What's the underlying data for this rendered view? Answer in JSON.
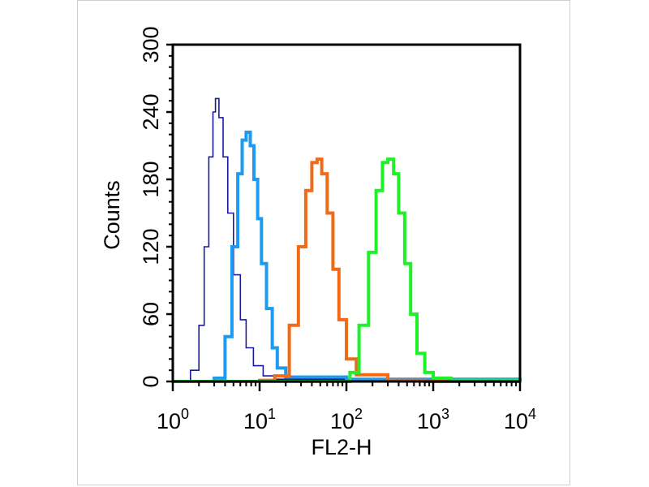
{
  "chart_data": {
    "type": "line",
    "title": "",
    "xlabel": "FL2-H",
    "ylabel": "Counts",
    "x_scale": "log",
    "xlim": [
      1,
      10000
    ],
    "ylim": [
      0,
      300
    ],
    "grid": false,
    "legend": "none",
    "x_ticks": [
      {
        "base": "10",
        "exp": "0",
        "value": 1
      },
      {
        "base": "10",
        "exp": "1",
        "value": 10
      },
      {
        "base": "10",
        "exp": "2",
        "value": 100
      },
      {
        "base": "10",
        "exp": "3",
        "value": 1000
      },
      {
        "base": "10",
        "exp": "4",
        "value": 10000
      }
    ],
    "y_ticks": [
      "0",
      "60",
      "120",
      "180",
      "240",
      "300"
    ],
    "y_tick_values": [
      0,
      60,
      120,
      180,
      240,
      300
    ],
    "series": [
      {
        "color": "#1a1aa0",
        "stroke": "thin",
        "x": [
          1,
          1.6,
          2,
          2.3,
          2.6,
          2.9,
          3.1,
          3.4,
          3.8,
          4.3,
          5,
          6,
          7,
          8.5,
          11,
          15,
          10000
        ],
        "y": [
          0,
          10,
          50,
          120,
          200,
          240,
          252,
          235,
          200,
          150,
          95,
          55,
          30,
          14,
          5,
          2,
          0
        ]
      },
      {
        "color": "#1e9af0",
        "stroke": "thick",
        "x": [
          1,
          3,
          4,
          4.8,
          5.6,
          6.3,
          7,
          7.8,
          8.6,
          9.5,
          10.5,
          12,
          14,
          16,
          20,
          100,
          10000
        ],
        "y": [
          0,
          3,
          40,
          120,
          185,
          215,
          222,
          210,
          180,
          145,
          105,
          65,
          30,
          12,
          4,
          2,
          0
        ]
      },
      {
        "color": "#f06a18",
        "stroke": "thick",
        "x": [
          1,
          10,
          15,
          22,
          28,
          34,
          40,
          46,
          52,
          60,
          70,
          82,
          100,
          130,
          300,
          800,
          10000
        ],
        "y": [
          0,
          1,
          5,
          50,
          120,
          170,
          195,
          198,
          185,
          150,
          100,
          55,
          20,
          6,
          1,
          0,
          0
        ]
      },
      {
        "color": "#1ef02a",
        "stroke": "thick",
        "x": [
          1,
          80,
          110,
          140,
          180,
          220,
          260,
          300,
          350,
          400,
          470,
          550,
          650,
          800,
          1000,
          1600,
          10000
        ],
        "y": [
          0,
          0,
          8,
          50,
          115,
          170,
          195,
          198,
          185,
          150,
          105,
          60,
          25,
          8,
          3,
          1,
          0
        ]
      }
    ]
  }
}
